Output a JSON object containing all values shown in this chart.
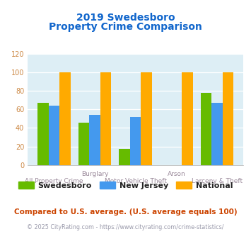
{
  "title_line1": "2019 Swedesboro",
  "title_line2": "Property Crime Comparison",
  "categories": [
    "All Property Crime",
    "Burglary",
    "Motor Vehicle Theft",
    "Arson",
    "Larceny & Theft"
  ],
  "x_labels_top": [
    "",
    "Burglary",
    "",
    "Arson",
    ""
  ],
  "x_labels_bottom": [
    "All Property Crime",
    "",
    "Motor Vehicle Theft",
    "",
    "Larceny & Theft"
  ],
  "swedesboro": [
    67,
    46,
    17,
    0,
    78
  ],
  "new_jersey": [
    64,
    54,
    52,
    0,
    67
  ],
  "national": [
    100,
    100,
    100,
    100,
    100
  ],
  "bar_colors": [
    "#66bb00",
    "#4499ee",
    "#ffaa00"
  ],
  "legend_labels": [
    "Swedesboro",
    "New Jersey",
    "National"
  ],
  "ylim": [
    0,
    120
  ],
  "yticks": [
    0,
    20,
    40,
    60,
    80,
    100,
    120
  ],
  "footnote1": "Compared to U.S. average. (U.S. average equals 100)",
  "footnote2": "© 2025 CityRating.com - https://www.cityrating.com/crime-statistics/",
  "title_bg": "#ffffff",
  "plot_bg": "#ddeef5",
  "fig_bg": "#ffffff",
  "title_color": "#1166cc",
  "footnote1_color": "#cc4400",
  "footnote2_color": "#9999aa",
  "label_color": "#998899",
  "tick_color": "#cc8844"
}
